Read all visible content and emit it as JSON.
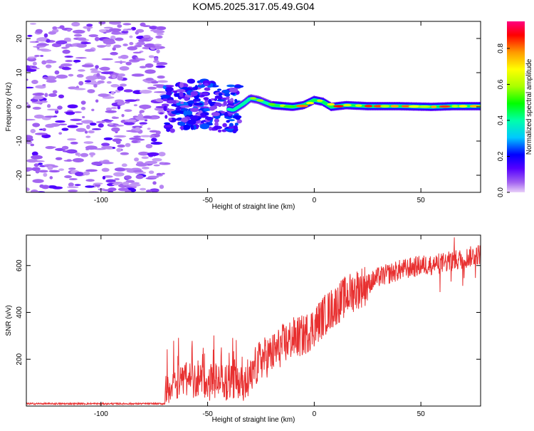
{
  "title": "KOM5.2025.317.05.49.G04",
  "colors": {
    "snr_line": "#e83030",
    "grid_text": "#000000",
    "background": "#ffffff"
  },
  "chart_data": [
    {
      "type": "heatmap",
      "title": "",
      "xlabel": "Height of straight line (km)",
      "ylabel": "Frequency (Hz)",
      "xlim": [
        -135,
        78
      ],
      "ylim": [
        -25,
        25
      ],
      "xticks": [
        -100,
        -50,
        0,
        50
      ],
      "yticks": [
        -20,
        -10,
        0,
        10,
        20
      ],
      "ridge": {
        "description_points_x": [
          -65,
          -55,
          -45,
          -38,
          -33,
          -30,
          -26,
          -20,
          -10,
          -5,
          0,
          4,
          8,
          15,
          25,
          40,
          55,
          65,
          78
        ],
        "description_points_y": [
          0,
          1,
          0,
          -1,
          1,
          2.5,
          2,
          0.5,
          0,
          0.5,
          2,
          1.5,
          0,
          0.5,
          0.2,
          0.2,
          0,
          0.2,
          0.2
        ]
      },
      "colorbar": {
        "label": "Normalized spectral amplitude",
        "range": [
          0,
          0.95
        ],
        "ticks": [
          0.0,
          0.2,
          0.4,
          0.6,
          0.8
        ]
      }
    },
    {
      "type": "line",
      "title": "",
      "xlabel": "Height of straight line (km)",
      "ylabel": "SNR (v/v)",
      "xlim": [
        -135,
        78
      ],
      "ylim": [
        0,
        730
      ],
      "xticks": [
        -100,
        -50,
        0,
        50
      ],
      "yticks": [
        200,
        400,
        600
      ],
      "envelope": {
        "x": [
          -135,
          -70,
          -66,
          -62,
          -58,
          -54,
          -50,
          -46,
          -42,
          -38,
          -34,
          -30,
          -25,
          -20,
          -15,
          -10,
          -5,
          0,
          5,
          10,
          15,
          20,
          25,
          30,
          40,
          50,
          60,
          70,
          78
        ],
        "y": [
          10,
          10,
          40,
          160,
          110,
          90,
          70,
          90,
          80,
          60,
          50,
          130,
          200,
          220,
          260,
          290,
          300,
          340,
          390,
          430,
          470,
          500,
          520,
          550,
          580,
          600,
          610,
          630,
          650
        ]
      }
    }
  ]
}
